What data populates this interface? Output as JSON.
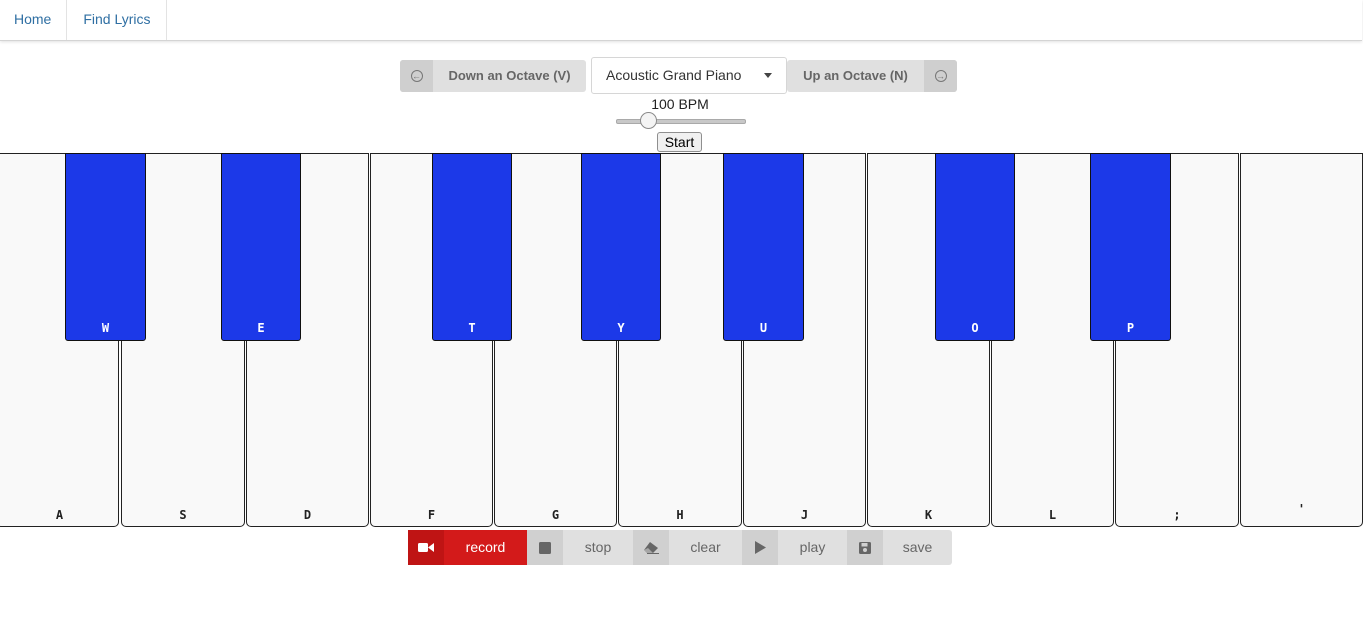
{
  "nav": {
    "home": "Home",
    "find_lyrics": "Find Lyrics"
  },
  "octave": {
    "down_label": "Down an Octave (V)",
    "up_label": "Up an Octave (N)",
    "instrument": "Acoustic Grand Piano"
  },
  "tempo": {
    "bpm_label": "100 BPM",
    "start_label": "Start"
  },
  "keyboard": {
    "white_keys": [
      "A",
      "S",
      "D",
      "F",
      "G",
      "H",
      "J",
      "K",
      "L",
      ";",
      "'"
    ],
    "black_keys": [
      "W",
      "E",
      "T",
      "Y",
      "U",
      "O",
      "P"
    ],
    "black_key_color": "#1c39e8"
  },
  "recorder": {
    "record": "record",
    "stop": "stop",
    "clear": "clear",
    "play": "play",
    "save": "save",
    "record_color": "#d31a1a"
  }
}
